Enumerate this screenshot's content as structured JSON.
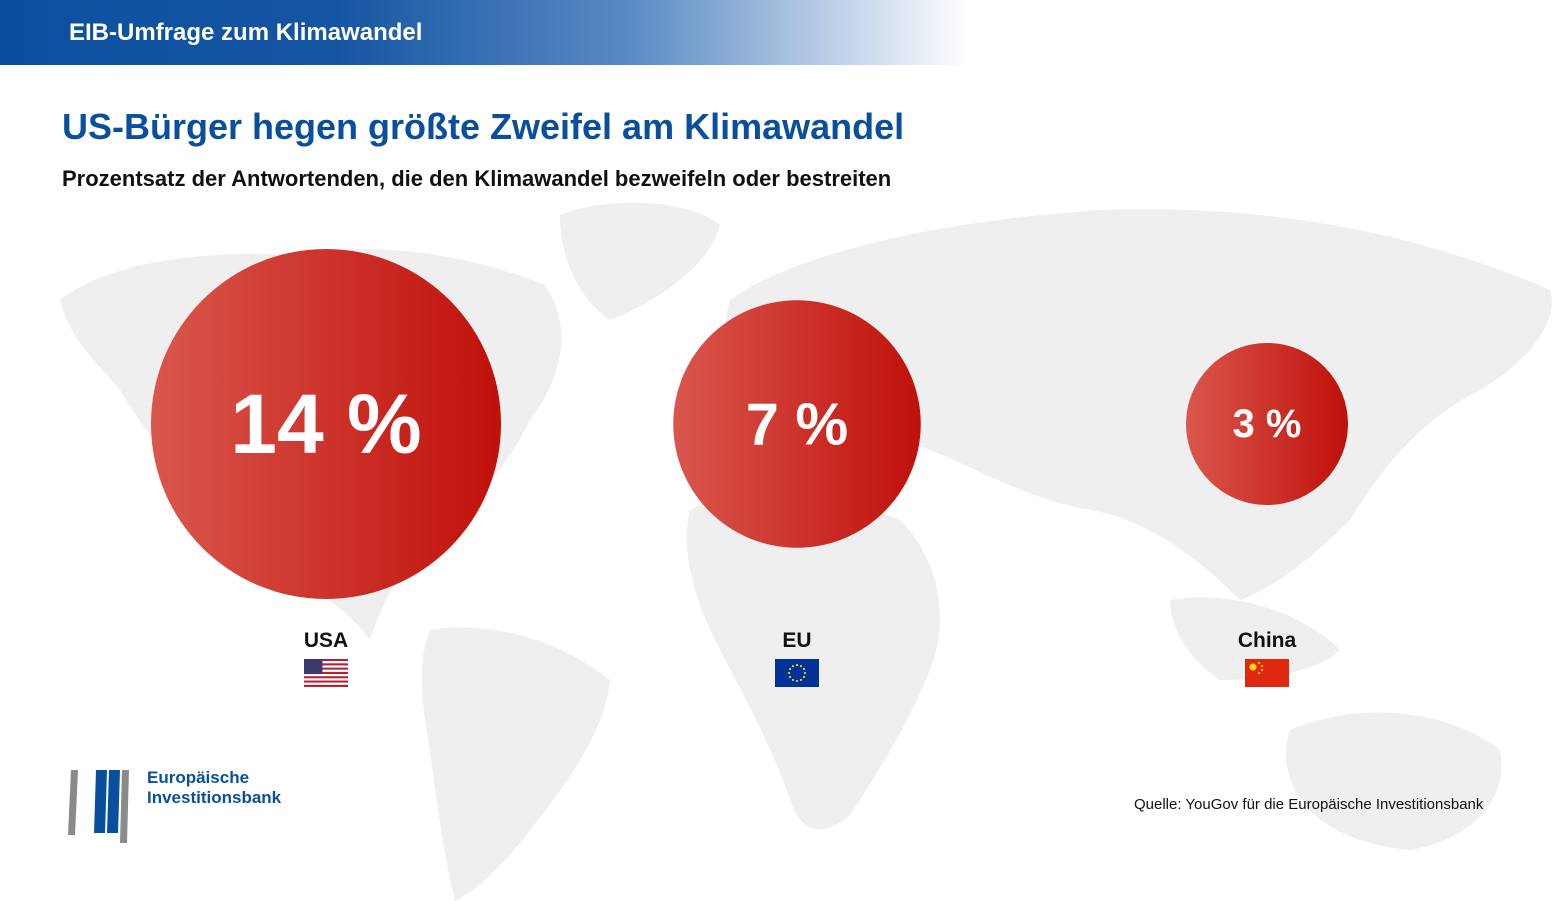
{
  "header": {
    "title": "EIB-Umfrage zum Klimawandel"
  },
  "chart_data": {
    "type": "bubble",
    "title": "US-Bürger hegen größte Zweifel am Klimawandel",
    "subtitle": "Prozentsatz der Antwortenden, die den Klimawandel bezweifeln oder bestreiten",
    "unit": "%",
    "categories": [
      "USA",
      "EU",
      "China"
    ],
    "values": [
      14,
      7,
      3
    ],
    "value_labels": [
      "14 %",
      "7 %",
      "3 %"
    ],
    "flags": [
      "us-flag-icon",
      "eu-flag-icon",
      "china-flag-icon"
    ],
    "colors": {
      "bubble_start": "#d9574d",
      "bubble_end": "#c0100a"
    }
  },
  "logo": {
    "line1": "Europäische",
    "line2": "Investitionsbank"
  },
  "source": "Quelle: YouGov für die Europäische Investitionsbank",
  "colors": {
    "brand_blue": "#0a4f9e",
    "map_gray": "#efefef"
  }
}
